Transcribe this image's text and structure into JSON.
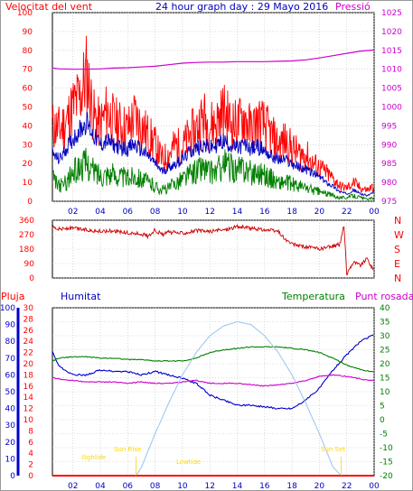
{
  "header": {
    "left_label": "Velocitat del vent",
    "title": "24 hour graph day : 29 Mayo 2016",
    "right_label": "Pressió"
  },
  "colors": {
    "wind_red": "#ff0000",
    "wind_blue": "#0000c0",
    "wind_green": "#008000",
    "pressure": "#cc00cc",
    "direction": "#cc0000",
    "axis_blue": "#0000cc",
    "axis_red": "#ff0000",
    "axis_green": "#008000",
    "axis_magenta": "#cc00cc",
    "sun": "#a0c8f0",
    "sun_text": "#ffd700",
    "grid": "#c0c0c0"
  },
  "chart_data": [
    {
      "type": "line",
      "title": "24 hour graph day : 29 Mayo 2016",
      "y_left_label": "Velocitat del vent",
      "y_right_label": "Pressió",
      "x_ticks": [
        "02",
        "04",
        "06",
        "08",
        "10",
        "12",
        "14",
        "16",
        "18",
        "20",
        "22",
        "00"
      ],
      "x_range_hours": [
        0.5,
        24
      ],
      "y_left_ticks": [
        0,
        10,
        20,
        30,
        40,
        50,
        60,
        70,
        80,
        90,
        100
      ],
      "y_left_range": [
        0,
        100
      ],
      "y_right_ticks": [
        975,
        980,
        985,
        990,
        995,
        1000,
        1005,
        1010,
        1015,
        1020,
        1025
      ],
      "y_right_range": [
        975,
        1025
      ],
      "grid": true,
      "series": [
        {
          "key": "gust",
          "color": "#ff0000",
          "axis": "left",
          "x": [
            0.5,
            1,
            1.5,
            2,
            2.5,
            3,
            3.5,
            4,
            4.5,
            5,
            5.5,
            6,
            6.5,
            7,
            7.5,
            8,
            8.5,
            9,
            9.5,
            10,
            10.5,
            11,
            11.5,
            12,
            12.5,
            13,
            13.5,
            14,
            14.5,
            15,
            15.5,
            16,
            16.5,
            17,
            17.5,
            18,
            18.5,
            19,
            19.5,
            20,
            20.5,
            21,
            21.5,
            22,
            22.5,
            23,
            23.5,
            24
          ],
          "values": [
            40,
            38,
            42,
            50,
            55,
            68,
            45,
            40,
            48,
            42,
            40,
            38,
            45,
            40,
            35,
            30,
            22,
            25,
            30,
            28,
            35,
            38,
            45,
            40,
            42,
            48,
            42,
            40,
            45,
            38,
            42,
            40,
            35,
            30,
            32,
            28,
            25,
            25,
            20,
            18,
            15,
            12,
            8,
            7,
            10,
            7,
            6,
            8
          ]
        },
        {
          "key": "average",
          "color": "#0000c0",
          "axis": "left",
          "x": [
            0.5,
            1,
            1.5,
            2,
            2.5,
            3,
            3.5,
            4,
            4.5,
            5,
            5.5,
            6,
            6.5,
            7,
            7.5,
            8,
            8.5,
            9,
            9.5,
            10,
            10.5,
            11,
            11.5,
            12,
            12.5,
            13,
            13.5,
            14,
            14.5,
            15,
            15.5,
            16,
            16.5,
            17,
            17.5,
            18,
            18.5,
            19,
            19.5,
            20,
            20.5,
            21,
            21.5,
            22,
            22.5,
            23,
            23.5,
            24
          ],
          "values": [
            25,
            22,
            28,
            33,
            38,
            42,
            35,
            30,
            32,
            30,
            28,
            28,
            30,
            27,
            24,
            20,
            16,
            18,
            20,
            22,
            26,
            28,
            30,
            28,
            30,
            32,
            30,
            28,
            30,
            28,
            29,
            27,
            24,
            22,
            22,
            20,
            18,
            17,
            15,
            13,
            10,
            8,
            5,
            4,
            6,
            4,
            3,
            5
          ]
        },
        {
          "key": "min",
          "color": "#008000",
          "axis": "left",
          "x": [
            0.5,
            1,
            1.5,
            2,
            2.5,
            3,
            3.5,
            4,
            4.5,
            5,
            5.5,
            6,
            6.5,
            7,
            7.5,
            8,
            8.5,
            9,
            9.5,
            10,
            10.5,
            11,
            11.5,
            12,
            12.5,
            13,
            13.5,
            14,
            14.5,
            15,
            15.5,
            16,
            16.5,
            17,
            17.5,
            18,
            18.5,
            19,
            19.5,
            20,
            20.5,
            21,
            21.5,
            22,
            22.5,
            23,
            23.5,
            24
          ],
          "values": [
            12,
            8,
            10,
            15,
            18,
            20,
            16,
            14,
            15,
            14,
            13,
            12,
            14,
            12,
            10,
            8,
            6,
            7,
            10,
            12,
            14,
            16,
            18,
            15,
            16,
            20,
            18,
            16,
            18,
            15,
            16,
            14,
            12,
            10,
            10,
            9,
            8,
            7,
            6,
            5,
            4,
            3,
            2,
            2,
            3,
            2,
            1,
            2
          ]
        },
        {
          "key": "pressure",
          "color": "#cc00cc",
          "axis": "right",
          "x": [
            0.5,
            1,
            2,
            3,
            4,
            5,
            6,
            7,
            8,
            9,
            10,
            11,
            12,
            13,
            14,
            15,
            16,
            17,
            18,
            19,
            20,
            21,
            22,
            23,
            24
          ],
          "values": [
            1010.3,
            1010.1,
            1010.0,
            1010.0,
            1010.1,
            1010.3,
            1010.4,
            1010.6,
            1010.8,
            1011.2,
            1011.6,
            1011.8,
            1011.9,
            1011.9,
            1012.0,
            1012.0,
            1012.0,
            1012.1,
            1012.2,
            1012.5,
            1013.0,
            1013.6,
            1014.2,
            1014.8,
            1015.1
          ]
        }
      ]
    },
    {
      "type": "line",
      "title": "",
      "y_left_ticks": [
        0,
        90,
        180,
        270,
        360
      ],
      "y_left_range": [
        0,
        360
      ],
      "y_right_labels": [
        "N",
        "W",
        "S",
        "E",
        "N"
      ],
      "grid": true,
      "series": [
        {
          "key": "direction",
          "color": "#cc0000",
          "x": [
            0.5,
            1,
            2,
            3,
            4,
            5,
            6,
            7,
            7.5,
            8,
            8.5,
            9,
            10,
            11,
            12,
            13,
            14,
            15,
            16,
            17,
            17.5,
            18,
            19,
            20,
            20.5,
            21,
            21.5,
            21.8,
            22,
            22.2,
            22.5,
            23,
            23.5,
            24
          ],
          "values": [
            320,
            305,
            310,
            300,
            290,
            295,
            280,
            275,
            260,
            300,
            270,
            285,
            280,
            295,
            290,
            300,
            320,
            310,
            300,
            290,
            240,
            210,
            195,
            180,
            190,
            200,
            210,
            330,
            20,
            60,
            100,
            80,
            120,
            40
          ]
        }
      ]
    },
    {
      "type": "line",
      "title": "",
      "labels": {
        "rain": "Pluja",
        "humidity": "Humitat",
        "temperature": "Temperatura",
        "dewpoint": "Punt rosada"
      },
      "y_rain_ticks": [
        0,
        2,
        4,
        6,
        8,
        10,
        12,
        14,
        16,
        18,
        20,
        22,
        24,
        26,
        28,
        30
      ],
      "y_humidity_ticks": [
        0,
        10,
        20,
        30,
        40,
        50,
        60,
        70,
        80,
        90,
        100
      ],
      "y_temp_ticks": [
        -20,
        -15,
        -10,
        -5,
        0,
        5,
        10,
        15,
        20,
        25,
        30,
        35,
        40
      ],
      "y_temp_range": [
        -20,
        40
      ],
      "grid": true,
      "sun_labels": {
        "twilight": "Ilighlide",
        "sunrise": "Sun Rise",
        "lowtide": "Lowtide",
        "sunset": "Sun Set"
      },
      "series": [
        {
          "key": "humidity",
          "color": "#0000cc",
          "axis": "humidity",
          "x": [
            0.5,
            1,
            2,
            3,
            4,
            5,
            6,
            7,
            8,
            9,
            10,
            11,
            12,
            13,
            14,
            15,
            16,
            17,
            18,
            19,
            20,
            21,
            22,
            23,
            24
          ],
          "values": [
            74,
            65,
            60,
            60,
            63,
            62,
            62,
            60,
            62,
            60,
            58,
            55,
            48,
            45,
            42,
            42,
            41,
            40,
            40,
            45,
            52,
            63,
            72,
            80,
            84
          ]
        },
        {
          "key": "temperature",
          "color": "#008000",
          "axis": "temp",
          "x": [
            0.5,
            1,
            2,
            3,
            4,
            5,
            6,
            7,
            8,
            9,
            10,
            11,
            12,
            13,
            14,
            15,
            16,
            17,
            18,
            19,
            20,
            21,
            22,
            23,
            24
          ],
          "values": [
            21,
            22,
            22.5,
            22.5,
            22,
            22,
            21.5,
            21.5,
            21,
            21,
            21,
            22,
            24,
            25,
            25.5,
            26,
            26,
            26,
            25.5,
            25,
            24,
            22,
            19.5,
            18,
            17
          ]
        },
        {
          "key": "dewpoint",
          "color": "#cc00cc",
          "axis": "temp",
          "x": [
            0.5,
            1,
            2,
            3,
            4,
            5,
            6,
            7,
            8,
            9,
            10,
            11,
            12,
            13,
            14,
            15,
            16,
            17,
            18,
            19,
            20,
            21,
            22,
            23,
            24
          ],
          "values": [
            15,
            14.5,
            14,
            13.5,
            13.5,
            13.5,
            13,
            13.5,
            13,
            13,
            13.5,
            14,
            13,
            13,
            13,
            12.5,
            12,
            12.5,
            13,
            14,
            15.5,
            16,
            15.5,
            14.5,
            14
          ]
        },
        {
          "key": "solar",
          "color": "#a0c8f0",
          "axis": "temp",
          "x": [
            6.6,
            7,
            8,
            9,
            10,
            11,
            12,
            13,
            14,
            15,
            16,
            17,
            18,
            19,
            20,
            21,
            21.6
          ],
          "values": [
            -20,
            -17,
            -5,
            6,
            16,
            24,
            30,
            33.5,
            35,
            34,
            30,
            24,
            16,
            6,
            -5,
            -17,
            -20
          ]
        },
        {
          "key": "rain",
          "color": "#ff0000",
          "axis": "rain",
          "x": [
            0.5,
            24
          ],
          "values": [
            0,
            0
          ]
        }
      ]
    }
  ]
}
